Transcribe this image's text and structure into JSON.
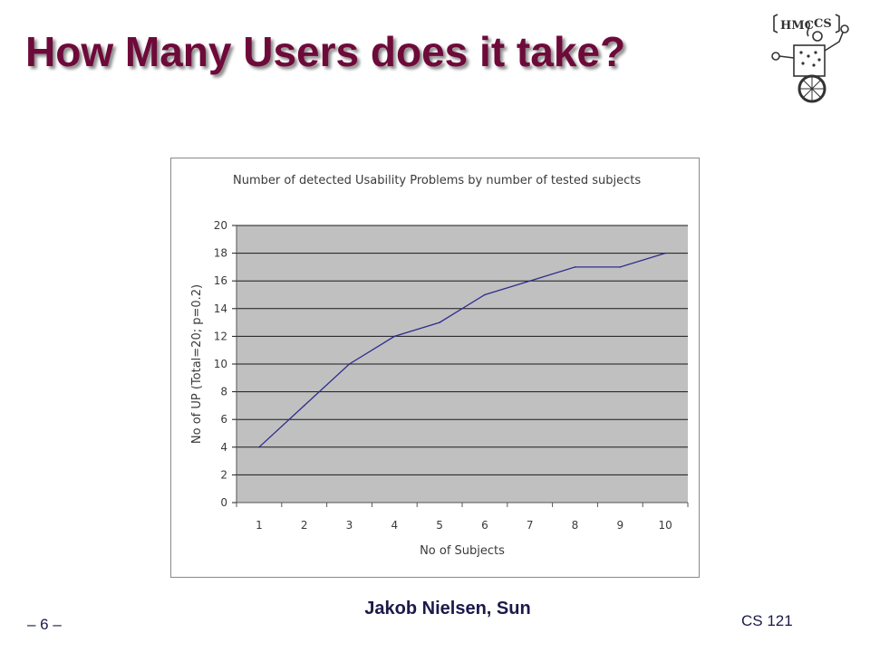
{
  "slide": {
    "title": "How Many Users does it take?",
    "caption": "Jakob Nielsen, Sun",
    "page_number": "– 6 –",
    "course": "CS 121"
  },
  "logo": {
    "icon": "hmc-cs-robot-logo",
    "text_left": "HMC",
    "text_right": "CS"
  },
  "chart_data": {
    "type": "line",
    "title": "Number of detected Usability Problems by number of tested subjects",
    "xlabel": "No of Subjects",
    "ylabel": "No of UP (Total=20; p=0.2)",
    "categories": [
      "1",
      "2",
      "3",
      "4",
      "5",
      "6",
      "7",
      "8",
      "9",
      "10"
    ],
    "values": [
      4,
      7,
      10,
      12,
      13,
      15,
      16,
      17,
      17,
      18
    ],
    "ylim": [
      0,
      20
    ],
    "yticks": [
      "0",
      "2",
      "4",
      "6",
      "8",
      "10",
      "12",
      "14",
      "16",
      "18",
      "20"
    ],
    "grid": true,
    "legend": "none",
    "colors": {
      "plot_background": "#c0c0c0",
      "line": "#2d2d8f",
      "gridline": "#1a1a1a"
    }
  }
}
